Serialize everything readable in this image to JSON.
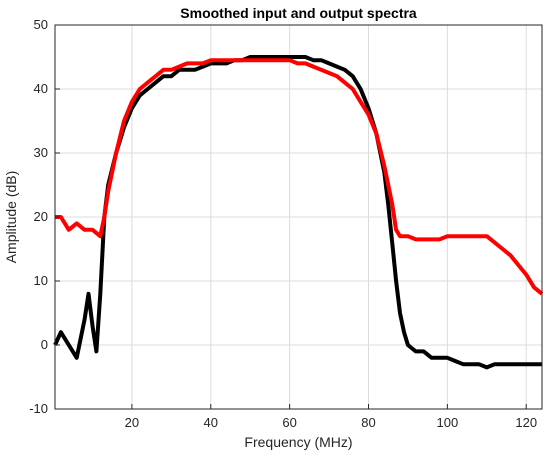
{
  "chart_data": {
    "type": "line",
    "title": "Smoothed input and output spectra",
    "xlabel": "Frequency (MHz)",
    "ylabel": "Amplitude (dB)",
    "xlim": [
      0.5,
      124
    ],
    "ylim": [
      -10,
      50
    ],
    "xticks": [
      20,
      40,
      60,
      80,
      100,
      120
    ],
    "yticks": [
      -10,
      0,
      10,
      20,
      30,
      40,
      50
    ],
    "grid": true,
    "legend": "none",
    "series": [
      {
        "color": "#000000",
        "x": [
          0.5,
          2,
          4,
          6,
          8,
          9,
          10,
          11,
          12,
          13,
          14,
          16,
          18,
          20,
          22,
          24,
          26,
          28,
          30,
          32,
          34,
          36,
          38,
          40,
          42,
          44,
          46,
          48,
          50,
          52,
          54,
          56,
          58,
          60,
          62,
          64,
          66,
          68,
          70,
          72,
          74,
          76,
          78,
          80,
          82,
          84,
          85,
          86,
          87,
          88,
          89,
          90,
          92,
          94,
          96,
          98,
          100,
          102,
          104,
          106,
          108,
          110,
          112,
          114,
          116,
          118,
          120,
          122,
          124
        ],
        "y": [
          0,
          2,
          0,
          -2,
          4,
          8,
          3,
          -1,
          8,
          20,
          25,
          30,
          34,
          37,
          39,
          40,
          41,
          42,
          42,
          43,
          43,
          43,
          43.5,
          44,
          44,
          44,
          44.5,
          44.5,
          45,
          45,
          45,
          45,
          45,
          45,
          45,
          45,
          44.5,
          44.5,
          44,
          43.5,
          43,
          42,
          40,
          37,
          33,
          27,
          22,
          16,
          10,
          5,
          2,
          0,
          -1,
          -1,
          -2,
          -2,
          -2,
          -2.5,
          -3,
          -3,
          -3,
          -3.5,
          -3,
          -3,
          -3,
          -3,
          -3,
          -3,
          -3
        ]
      },
      {
        "color": "#ff0000",
        "x": [
          0.5,
          2,
          4,
          6,
          8,
          10,
          12,
          13,
          14,
          16,
          18,
          20,
          22,
          24,
          26,
          28,
          30,
          32,
          34,
          36,
          38,
          40,
          42,
          44,
          46,
          48,
          50,
          52,
          54,
          56,
          58,
          60,
          62,
          64,
          66,
          68,
          70,
          72,
          74,
          76,
          78,
          80,
          82,
          84,
          86,
          87,
          88,
          90,
          92,
          94,
          96,
          98,
          100,
          102,
          104,
          106,
          108,
          110,
          112,
          114,
          116,
          118,
          120,
          122,
          124
        ],
        "y": [
          20,
          20,
          18,
          19,
          18,
          18,
          17,
          20,
          24,
          30,
          35,
          38,
          40,
          41,
          42,
          43,
          43,
          43.5,
          44,
          44,
          44,
          44.5,
          44.5,
          44.5,
          44.5,
          44.5,
          44.5,
          44.5,
          44.5,
          44.5,
          44.5,
          44.5,
          44,
          44,
          43.5,
          43,
          42.5,
          42,
          41,
          40,
          38,
          36,
          33,
          28,
          22,
          18,
          17,
          17,
          16.5,
          16.5,
          16.5,
          16.5,
          17,
          17,
          17,
          17,
          17,
          17,
          16,
          15,
          14,
          12.5,
          11,
          9,
          8
        ]
      }
    ]
  }
}
